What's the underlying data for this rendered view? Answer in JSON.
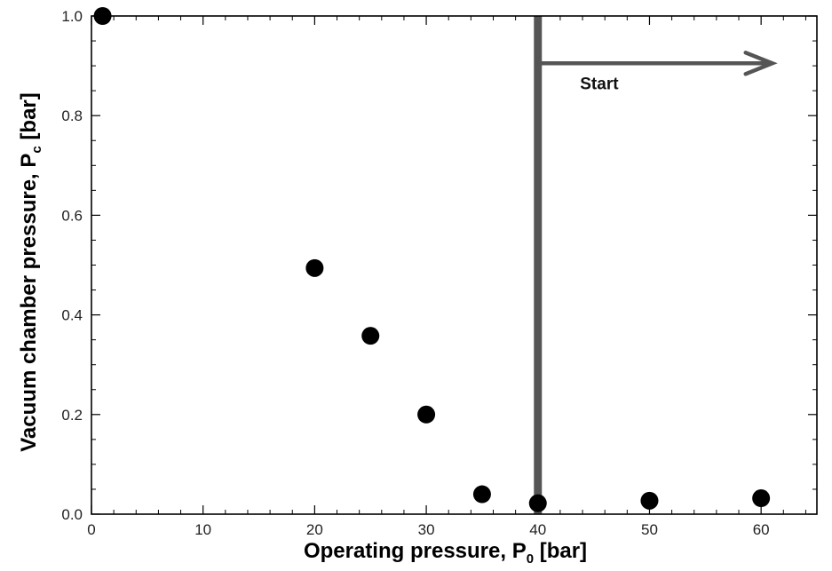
{
  "chart_data": {
    "type": "scatter",
    "title": "",
    "xlabel": {
      "main": "Operating pressure, P",
      "sub": "0",
      "unit": " [bar]"
    },
    "ylabel": {
      "main": "Vacuum chamber pressure, P",
      "sub": "c",
      "unit": " [bar]"
    },
    "xlim": [
      0,
      65
    ],
    "ylim": [
      0,
      1.0
    ],
    "x_ticks": [
      0,
      10,
      20,
      30,
      40,
      50,
      60
    ],
    "x_tick_labels": [
      "0",
      "10",
      "20",
      "30",
      "40",
      "50",
      "60"
    ],
    "y_ticks": [
      0,
      0.2,
      0.4,
      0.6,
      0.8,
      1.0
    ],
    "y_tick_labels": [
      "0.0",
      "0.2",
      "0.4",
      "0.6",
      "0.8",
      "1.0"
    ],
    "grid": false,
    "series": [
      {
        "marker_color": "#000000",
        "x": [
          1,
          20,
          25,
          30,
          35,
          40,
          50,
          60
        ],
        "y": [
          1.0,
          0.494,
          0.358,
          0.2,
          0.04,
          0.022,
          0.027,
          0.032
        ]
      }
    ],
    "annotations": {
      "vertical_line": {
        "x": 40,
        "color": "#555555"
      },
      "arrow": {
        "x_from": 40,
        "x_to": 61,
        "y": 0.905,
        "color": "#555555"
      },
      "start_label": {
        "text": "Start",
        "x": 45.5,
        "y": 0.865
      }
    }
  }
}
